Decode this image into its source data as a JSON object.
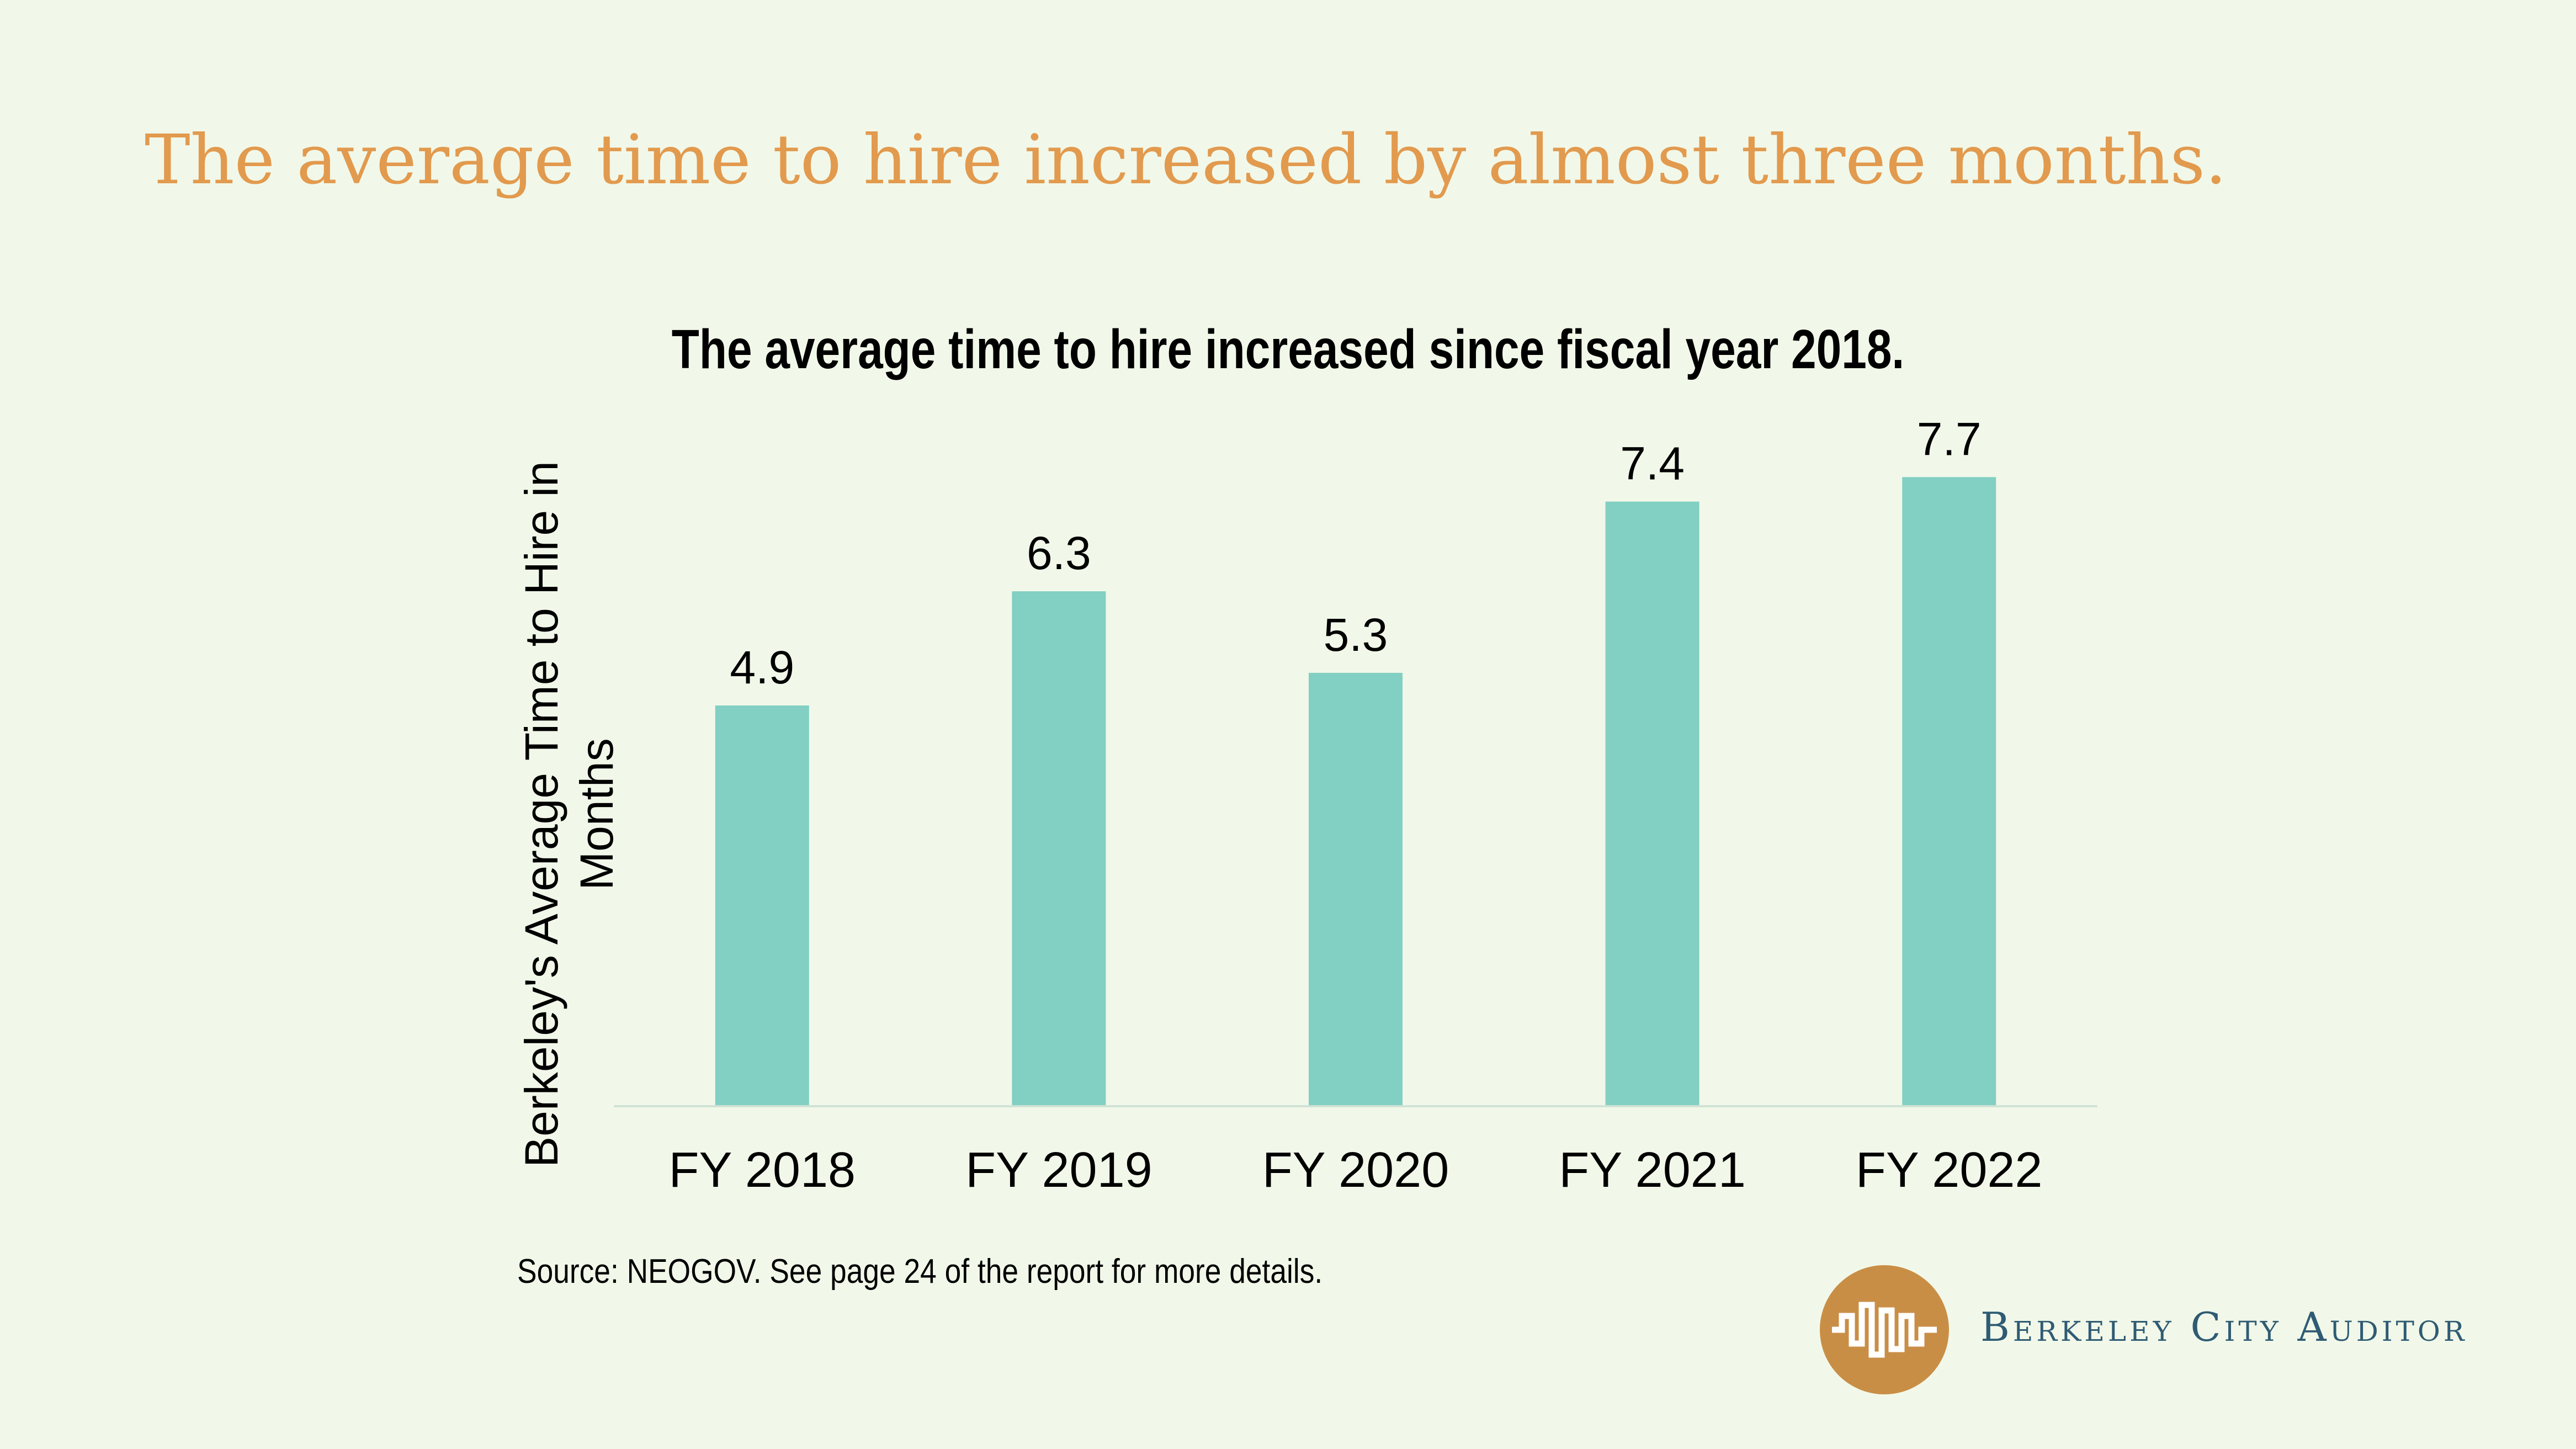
{
  "headline": "The average time to hire increased by almost three months.",
  "source_note": "Source: NEOGOV. See page 24 of the report for more details.",
  "brand": {
    "name": "Berkeley City Auditor",
    "logo_icon": "waveform-seal-icon"
  },
  "colors": {
    "background": "#f1f8e9",
    "headline": "#e29a4e",
    "bar": "#82cfc3",
    "axis": "#cfe3d6",
    "brand_text": "#2f5b73",
    "logo": "#c98e46"
  },
  "chart_data": {
    "type": "bar",
    "title": "The average time to hire increased since fiscal year 2018.",
    "xlabel": "",
    "ylabel": "Berkeley's Average Time to Hire in Months",
    "categories": [
      "FY 2018",
      "FY 2019",
      "FY 2020",
      "FY 2021",
      "FY 2022"
    ],
    "values": [
      4.9,
      6.3,
      5.3,
      7.4,
      7.7
    ],
    "data_labels": [
      "4.9",
      "6.3",
      "5.3",
      "7.4",
      "7.7"
    ],
    "ylim": [
      0,
      8
    ],
    "grid": false,
    "legend": "none"
  }
}
